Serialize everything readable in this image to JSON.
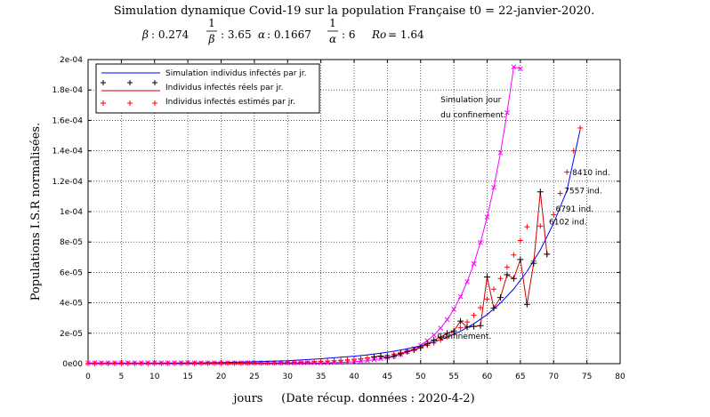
{
  "chart_data": {
    "type": "line",
    "title": "Simulation dynamique Covid-19 sur la population Française t0 = 22-janvier-2020.",
    "params": [
      {
        "symbol": "β",
        "value": ": 0.274"
      },
      {
        "symbol": "1/β",
        "value": ": 3.65"
      },
      {
        "symbol": "α",
        "value": ": 0.1667"
      },
      {
        "symbol": "1/α",
        "value": ": 6"
      },
      {
        "symbol": "Ro",
        "value": "= 1.64"
      }
    ],
    "xlabel": "jours     (Date récup. données : 2020-4-2)",
    "ylabel": "Populations I.S.R normalisées.",
    "xlim": [
      0,
      80
    ],
    "ylim": [
      0,
      0.0002
    ],
    "xticks": [
      0,
      5,
      10,
      15,
      20,
      25,
      30,
      35,
      40,
      45,
      50,
      55,
      60,
      65,
      70,
      75,
      80
    ],
    "yticks": [
      0,
      2e-05,
      4e-05,
      6e-05,
      8e-05,
      0.0001,
      0.00012,
      0.00014,
      0.00016,
      0.00018,
      0.0002
    ],
    "ytick_labels": [
      "0e00",
      "2e-05",
      "4e-05",
      "6e-05",
      "8e-05",
      "1e-04",
      "1.2e-04",
      "1.4e-04",
      "1.6e-04",
      "1.8e-04",
      "2e-04"
    ],
    "grid": true,
    "legend_position": "top-left",
    "series": [
      {
        "name": "Simulation individus infectés par jr.",
        "color": "#0000ff",
        "style": "line",
        "x": [
          0,
          5,
          10,
          15,
          20,
          25,
          30,
          35,
          40,
          42,
          44,
          46,
          48,
          50,
          52,
          54,
          56,
          58,
          60,
          62,
          64,
          66,
          68,
          70,
          72,
          74
        ],
        "y": [
          5e-08,
          1e-07,
          2e-07,
          4e-07,
          7e-07,
          1.2e-06,
          1.9e-06,
          3.2e-06,
          4.9e-06,
          5.8e-06,
          6.9e-06,
          8.2e-06,
          9.8e-06,
          1.17e-05,
          1.42e-05,
          1.74e-05,
          2.13e-05,
          2.62e-05,
          3.23e-05,
          3.98e-05,
          4.91e-05,
          6.06e-05,
          7.48e-05,
          9.24e-05,
          0.000114,
          0.000154
        ]
      },
      {
        "name": "Individus infectés réels par jr.",
        "color": "#cc0000",
        "marker_color": "#000000",
        "style": "line-plus",
        "x": [
          43,
          44,
          45,
          46,
          47,
          48,
          49,
          50,
          51,
          52,
          53,
          54,
          55,
          56,
          57,
          58,
          59,
          60,
          61,
          62,
          63,
          64,
          65,
          66,
          67,
          68,
          69
        ],
        "y": [
          4.5e-06,
          5e-06,
          4e-06,
          5e-06,
          6.5e-06,
          8e-06,
          9e-06,
          1.05e-05,
          1.3e-05,
          1.55e-05,
          1.75e-05,
          2e-05,
          2.15e-05,
          2.8e-05,
          2.4e-05,
          2.45e-05,
          2.5e-05,
          5.7e-05,
          3.65e-05,
          4.35e-05,
          5.85e-05,
          5.6e-05,
          6.85e-05,
          3.9e-05,
          6.6e-05,
          0.000113,
          7.2e-05
        ]
      },
      {
        "name": "Individus infectés estimés par jr.",
        "color": "#ff0000",
        "style": "plus",
        "x": [
          0,
          1,
          2,
          3,
          4,
          5,
          6,
          7,
          8,
          9,
          10,
          11,
          12,
          13,
          14,
          15,
          16,
          17,
          18,
          19,
          20,
          21,
          22,
          23,
          24,
          25,
          26,
          27,
          28,
          29,
          30,
          31,
          32,
          33,
          34,
          35,
          36,
          37,
          38,
          39,
          40,
          41,
          42,
          43,
          44,
          45,
          46,
          47,
          48,
          49,
          50,
          51,
          52,
          53,
          54,
          55,
          56,
          57,
          58,
          59,
          60,
          61,
          62,
          63,
          64,
          65,
          66,
          67,
          68,
          69,
          70,
          71,
          72,
          73,
          74
        ],
        "y": [
          1e-07,
          1e-07,
          1e-07,
          1e-07,
          1e-07,
          1e-07,
          1e-07,
          1e-07,
          1e-07,
          1e-07,
          1e-07,
          1e-07,
          1e-07,
          1e-07,
          1e-07,
          2e-07,
          2e-07,
          2e-07,
          2e-07,
          2e-07,
          2e-07,
          3e-07,
          3e-07,
          3e-07,
          4e-07,
          4e-07,
          5e-07,
          5e-07,
          6e-07,
          7e-07,
          8e-07,
          9e-07,
          1e-06,
          1.1e-06,
          1.3e-06,
          1.5e-06,
          1.7e-06,
          1.9e-06,
          2.2e-06,
          2.5e-06,
          2.9e-06,
          3.3e-06,
          3.8e-06,
          4.3e-06,
          4.9e-06,
          5.5e-06,
          6.3e-06,
          7.1e-06,
          8.1e-06,
          9.2e-06,
          1.05e-05,
          1.2e-05,
          1.36e-05,
          1.55e-05,
          1.77e-05,
          2.04e-05,
          2.36e-05,
          2.74e-05,
          3.18e-05,
          3.68e-05,
          4.25e-05,
          4.9e-05,
          5.6e-05,
          6.35e-05,
          7.15e-05,
          8.1e-05,
          9e-05,
          6.75e-05,
          9.05e-05,
          7.2e-05,
          9.8e-05,
          0.000112,
          0.000126,
          0.00014,
          0.000155
        ]
      },
      {
        "name": "Simulation jour du confinement.",
        "color": "#ff00ff",
        "style": "line-x",
        "x": [
          0,
          1,
          2,
          3,
          4,
          5,
          6,
          7,
          8,
          9,
          10,
          11,
          12,
          13,
          14,
          15,
          16,
          17,
          18,
          19,
          20,
          21,
          22,
          23,
          24,
          25,
          26,
          27,
          28,
          29,
          30,
          31,
          32,
          33,
          34,
          35,
          36,
          37,
          38,
          39,
          40,
          41,
          42,
          43,
          44,
          45,
          46,
          47,
          48,
          49,
          50,
          51,
          52,
          53,
          54,
          55,
          56,
          57,
          58,
          59,
          60,
          61,
          62,
          63,
          64,
          65
        ],
        "y": [
          5e-07,
          5e-07,
          5e-07,
          5e-07,
          5e-07,
          5e-07,
          5e-07,
          5e-07,
          5e-07,
          5e-07,
          5e-07,
          5e-07,
          5e-07,
          5e-07,
          5e-07,
          5e-07,
          5e-07,
          5e-07,
          5e-07,
          5e-07,
          5e-07,
          5e-07,
          5e-07,
          5e-07,
          5e-07,
          5e-07,
          5e-07,
          5e-07,
          5e-07,
          5e-07,
          5e-07,
          5e-07,
          5e-07,
          5e-07,
          5e-07,
          5e-07,
          6e-07,
          7e-07,
          8e-07,
          1e-06,
          1.3e-06,
          1.6e-06,
          2e-06,
          2.6e-06,
          3.2e-06,
          4e-06,
          5e-06,
          6.2e-06,
          7.8e-06,
          9.7e-06,
          1.21e-05,
          1.51e-05,
          1.88e-05,
          2.34e-05,
          2.9e-05,
          3.58e-05,
          4.41e-05,
          5.39e-05,
          6.57e-05,
          7.97e-05,
          9.64e-05,
          0.0001159,
          0.0001387,
          0.0001651,
          0.0001952,
          0.000194
        ]
      }
    ],
    "annotations": [
      {
        "text": "Simulation jour",
        "x": 53,
        "y": 0.000172
      },
      {
        "text": "du confinement.",
        "x": 53,
        "y": 0.000162
      },
      {
        "text": "Confinement.",
        "x": 52.5,
        "y": 1.65e-05
      },
      {
        "text": "8410 ind.",
        "x": 72.8,
        "y": 0.000124
      },
      {
        "text": "7557 ind.",
        "x": 71.6,
        "y": 0.000112
      },
      {
        "text": "6791 ind.",
        "x": 70.3,
        "y": 0.0001
      },
      {
        "text": "6102 ind.",
        "x": 69.3,
        "y": 9.15e-05
      }
    ]
  }
}
